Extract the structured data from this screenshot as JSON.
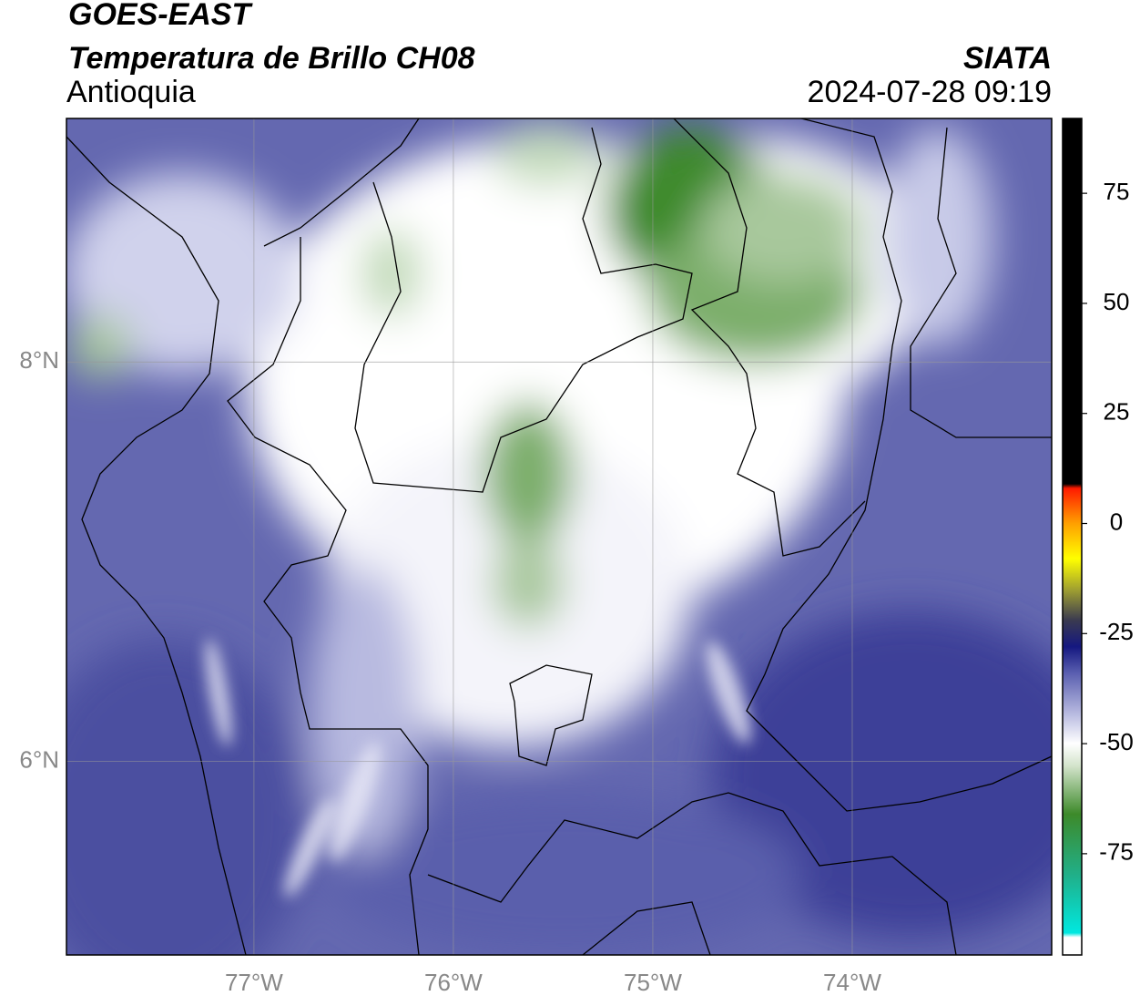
{
  "header": {
    "satellite": "GOES-EAST",
    "title": "Temperatura de Brillo CH08",
    "region": "Antioquia",
    "source": "SIATA",
    "datetime": "2024-07-28 09:19"
  },
  "chart_data": {
    "type": "map",
    "xlim": [
      -77.94,
      -73.0
    ],
    "ylim": [
      5.03,
      9.22
    ],
    "xticks": [
      {
        "value": -77,
        "label": "77°W"
      },
      {
        "value": -76,
        "label": "76°W"
      },
      {
        "value": -75,
        "label": "75°W"
      },
      {
        "value": -74,
        "label": "74°W"
      }
    ],
    "yticks": [
      {
        "value": 6,
        "label": "6°N"
      },
      {
        "value": 8,
        "label": "8°N"
      }
    ],
    "grid": true,
    "colorbar": {
      "lim": [
        -98,
        92
      ],
      "ticks": [
        75,
        50,
        25,
        0,
        -25,
        -50,
        -75
      ],
      "stops": [
        {
          "value": -98,
          "color": "#ffffff"
        },
        {
          "value": -94,
          "color": "#ffffff"
        },
        {
          "value": -93,
          "color": "#00e8e0"
        },
        {
          "value": -80,
          "color": "#20b08a"
        },
        {
          "value": -66,
          "color": "#3d8a2a"
        },
        {
          "value": -55,
          "color": "#d4e4cc"
        },
        {
          "value": -50,
          "color": "#ffffff"
        },
        {
          "value": -44,
          "color": "#c0c2e4"
        },
        {
          "value": -34,
          "color": "#5a5fb0"
        },
        {
          "value": -28,
          "color": "#151880"
        },
        {
          "value": -22,
          "color": "#3a3a50"
        },
        {
          "value": -15,
          "color": "#a0a030"
        },
        {
          "value": -8,
          "color": "#ffff00"
        },
        {
          "value": 0,
          "color": "#ffa000"
        },
        {
          "value": 8,
          "color": "#ff1a00"
        },
        {
          "value": 9,
          "color": "#000000"
        },
        {
          "value": 92,
          "color": "#000000"
        }
      ]
    }
  }
}
